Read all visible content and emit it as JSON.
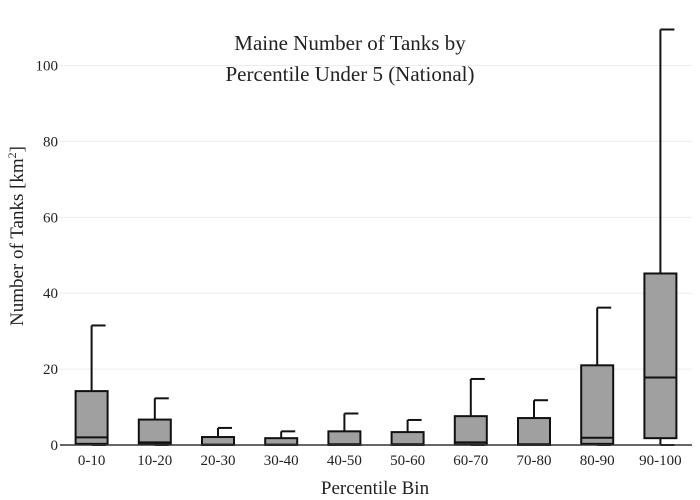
{
  "chart_data": {
    "type": "box",
    "title_lines": [
      "Maine Number of Tanks by",
      "Percentile Under 5 (National)"
    ],
    "xlabel": "Percentile Bin",
    "ylabel": "Number of Tanks  [km",
    "ylabel_superscript": "2",
    "ylabel_suffix": "]",
    "ylim": [
      0,
      112
    ],
    "yticks": [
      0,
      20,
      40,
      60,
      80,
      100
    ],
    "grid": true,
    "categories": [
      "0-10",
      "10-20",
      "20-30",
      "30-40",
      "40-50",
      "50-60",
      "60-70",
      "70-80",
      "80-90",
      "90-100"
    ],
    "boxes": [
      {
        "min": 0,
        "q1": 0.3,
        "median": 2.0,
        "q3": 14.2,
        "max": 31.5
      },
      {
        "min": 0,
        "q1": 0.2,
        "median": 0.7,
        "q3": 6.7,
        "max": 12.3
      },
      {
        "min": 0,
        "q1": 0.0,
        "median": 0.1,
        "q3": 2.1,
        "max": 4.5
      },
      {
        "min": 0,
        "q1": 0.0,
        "median": 0.1,
        "q3": 1.8,
        "max": 3.6
      },
      {
        "min": 0,
        "q1": 0.0,
        "median": 0.2,
        "q3": 3.6,
        "max": 8.3
      },
      {
        "min": 0,
        "q1": 0.0,
        "median": 0.2,
        "q3": 3.4,
        "max": 6.6
      },
      {
        "min": 0,
        "q1": 0.1,
        "median": 0.7,
        "q3": 7.6,
        "max": 17.4
      },
      {
        "min": 0,
        "q1": 0.0,
        "median": 0.2,
        "q3": 7.1,
        "max": 11.8
      },
      {
        "min": 0,
        "q1": 0.3,
        "median": 1.9,
        "q3": 21.0,
        "max": 36.2
      },
      {
        "min": 0,
        "q1": 1.8,
        "median": 17.8,
        "q3": 45.2,
        "max": 109.5
      }
    ],
    "colors": {
      "box_fill": "#a0a0a0",
      "box_stroke": "#111111",
      "grid": "#ececec"
    }
  }
}
